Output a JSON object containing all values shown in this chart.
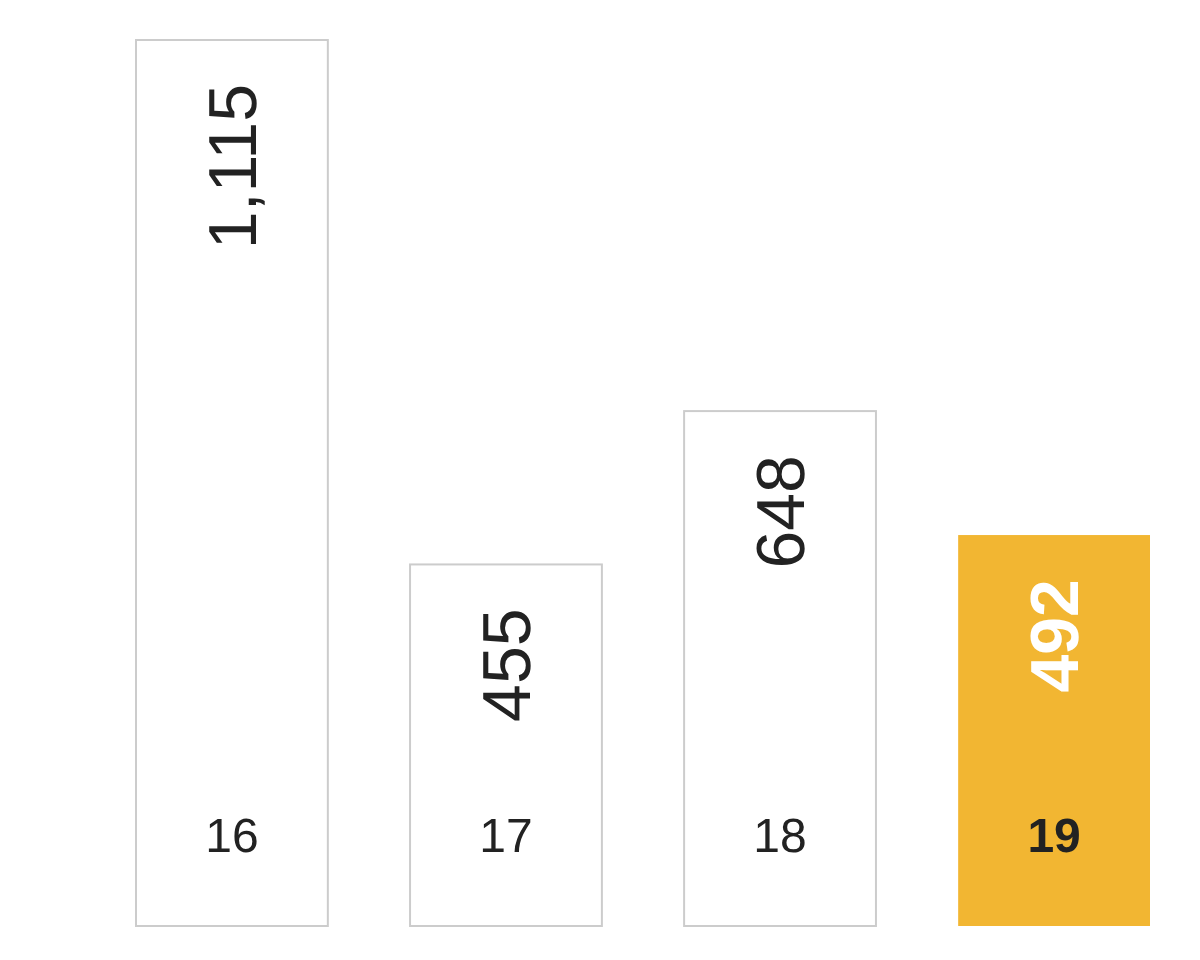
{
  "chart_data": {
    "type": "bar",
    "categories": [
      "16",
      "17",
      "18",
      "19"
    ],
    "values": [
      1115,
      455,
      648,
      492
    ],
    "value_labels": [
      "1,115",
      "455",
      "648",
      "492"
    ],
    "colors": [
      "#ffffff",
      "#ffffff",
      "#ffffff",
      "#f2b632"
    ]
  }
}
